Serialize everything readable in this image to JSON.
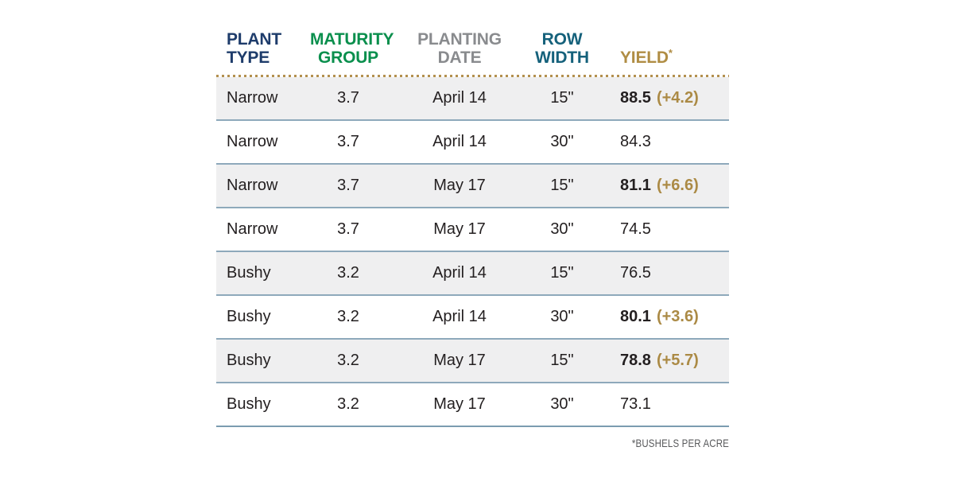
{
  "chart_data": {
    "type": "table",
    "columns": [
      {
        "label": "PLANT TYPE",
        "line1": "PLANT",
        "line2": "TYPE",
        "color": "#1e3c6b",
        "align": "left"
      },
      {
        "label": "MATURITY GROUP",
        "line1": "MATURITY",
        "line2": "GROUP",
        "color": "#0a8f4d",
        "align": "center"
      },
      {
        "label": "PLANTING DATE",
        "line1": "PLANTING",
        "line2": "DATE",
        "color": "#898b8e",
        "align": "center"
      },
      {
        "label": "ROW WIDTH",
        "line1": "ROW",
        "line2": "WIDTH",
        "color": "#15617b",
        "align": "center"
      },
      {
        "label": "YIELD*",
        "line1": "YIELD",
        "superscript": "*",
        "color": "#b08d44",
        "align": "left"
      }
    ],
    "rows": [
      {
        "plant_type": "Narrow",
        "maturity_group": "3.7",
        "planting_date": "April 14",
        "row_width": "15\"",
        "yield": "88.5",
        "yield_delta": "(+4.2)",
        "highlighted": true
      },
      {
        "plant_type": "Narrow",
        "maturity_group": "3.7",
        "planting_date": "April 14",
        "row_width": "30\"",
        "yield": "84.3",
        "yield_delta": "",
        "highlighted": false
      },
      {
        "plant_type": "Narrow",
        "maturity_group": "3.7",
        "planting_date": "May 17",
        "row_width": "15\"",
        "yield": "81.1",
        "yield_delta": "(+6.6)",
        "highlighted": true
      },
      {
        "plant_type": "Narrow",
        "maturity_group": "3.7",
        "planting_date": "May 17",
        "row_width": "30\"",
        "yield": "74.5",
        "yield_delta": "",
        "highlighted": false
      },
      {
        "plant_type": "Bushy",
        "maturity_group": "3.2",
        "planting_date": "April 14",
        "row_width": "15\"",
        "yield": "76.5",
        "yield_delta": "",
        "highlighted": false
      },
      {
        "plant_type": "Bushy",
        "maturity_group": "3.2",
        "planting_date": "April 14",
        "row_width": "30\"",
        "yield": "80.1",
        "yield_delta": "(+3.6)",
        "highlighted": true
      },
      {
        "plant_type": "Bushy",
        "maturity_group": "3.2",
        "planting_date": "May 17",
        "row_width": "15\"",
        "yield": "78.8",
        "yield_delta": "(+5.7)",
        "highlighted": true
      },
      {
        "plant_type": "Bushy",
        "maturity_group": "3.2",
        "planting_date": "May 17",
        "row_width": "30\"",
        "yield": "73.1",
        "yield_delta": "",
        "highlighted": false
      }
    ],
    "footnote": "*BUSHELS PER ACRE",
    "yield_unit": "bushels per acre",
    "accent_colors": {
      "gold": "#b08d44",
      "row_stripe": "#efeff0",
      "row_separator": "#8ea9bb",
      "bottom_border": "#7b9cb0",
      "dotted_divider": "#b3904e",
      "body_text": "#231f20",
      "footnote_text": "#58595b"
    }
  }
}
